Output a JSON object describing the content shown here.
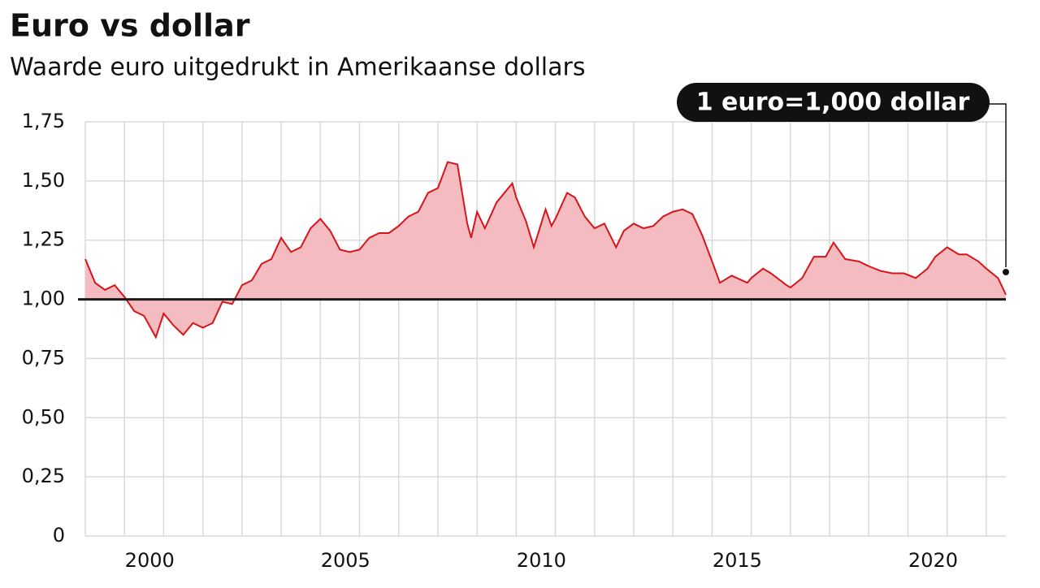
{
  "chart_data": {
    "type": "area",
    "title": "Euro vs dollar",
    "subtitle": "Waarde euro uitgedrukt in Amerikaanse dollars",
    "annotation": "1 euro=1,000 dollar",
    "x": [
      1999.0,
      1999.25,
      1999.5,
      1999.75,
      2000.0,
      2000.25,
      2000.5,
      2000.8,
      2001.0,
      2001.25,
      2001.5,
      2001.75,
      2002.0,
      2002.25,
      2002.5,
      2002.75,
      2003.0,
      2003.25,
      2003.5,
      2003.75,
      2004.0,
      2004.25,
      2004.5,
      2004.75,
      2005.0,
      2005.25,
      2005.5,
      2005.75,
      2006.0,
      2006.25,
      2006.5,
      2006.75,
      2007.0,
      2007.25,
      2007.5,
      2007.75,
      2008.0,
      2008.25,
      2008.5,
      2008.75,
      2008.85,
      2009.0,
      2009.2,
      2009.5,
      2009.9,
      2010.0,
      2010.25,
      2010.45,
      2010.75,
      2010.9,
      2011.0,
      2011.3,
      2011.5,
      2011.75,
      2012.0,
      2012.25,
      2012.55,
      2012.75,
      2013.0,
      2013.25,
      2013.5,
      2013.75,
      2014.0,
      2014.25,
      2014.5,
      2014.75,
      2015.0,
      2015.2,
      2015.5,
      2015.9,
      2016.0,
      2016.3,
      2016.5,
      2016.9,
      2017.0,
      2017.3,
      2017.6,
      2017.9,
      2018.1,
      2018.4,
      2018.75,
      2019.0,
      2019.3,
      2019.6,
      2019.9,
      2020.2,
      2020.5,
      2020.7,
      2021.0,
      2021.3,
      2021.5,
      2021.8,
      2022.0,
      2022.3,
      2022.5
    ],
    "values": [
      1.17,
      1.07,
      1.04,
      1.06,
      1.01,
      0.95,
      0.93,
      0.84,
      0.94,
      0.89,
      0.85,
      0.9,
      0.88,
      0.9,
      0.99,
      0.98,
      1.06,
      1.08,
      1.15,
      1.17,
      1.26,
      1.2,
      1.22,
      1.3,
      1.34,
      1.29,
      1.21,
      1.2,
      1.21,
      1.26,
      1.28,
      1.28,
      1.31,
      1.35,
      1.37,
      1.45,
      1.47,
      1.58,
      1.57,
      1.32,
      1.26,
      1.37,
      1.3,
      1.41,
      1.49,
      1.43,
      1.33,
      1.22,
      1.38,
      1.31,
      1.34,
      1.45,
      1.43,
      1.35,
      1.3,
      1.32,
      1.22,
      1.29,
      1.32,
      1.3,
      1.31,
      1.35,
      1.37,
      1.38,
      1.36,
      1.27,
      1.16,
      1.07,
      1.1,
      1.07,
      1.09,
      1.13,
      1.11,
      1.06,
      1.05,
      1.09,
      1.18,
      1.18,
      1.24,
      1.17,
      1.16,
      1.14,
      1.12,
      1.11,
      1.11,
      1.09,
      1.13,
      1.18,
      1.22,
      1.19,
      1.19,
      1.16,
      1.13,
      1.09,
      1.02
    ],
    "color": "#d7141a",
    "fill_color": "#f4bcc0",
    "baseline": 1,
    "xlim": [
      1999.0,
      2022.5
    ],
    "xticks": [
      2000,
      2005,
      2010,
      2015,
      2020
    ],
    "xgrid": [
      2000,
      2001,
      2002,
      2003,
      2004,
      2005,
      2006,
      2007,
      2008,
      2009,
      2010,
      2011,
      2012,
      2013,
      2014,
      2015,
      2016,
      2017,
      2018,
      2019,
      2020,
      2021,
      2022
    ],
    "ylim": [
      0,
      1.75
    ],
    "yticks": [
      0,
      {
        "value": 0.25,
        "label": "0,25"
      },
      {
        "value": 0.5,
        "label": "0,50"
      },
      {
        "value": 0.75,
        "label": "0,75"
      },
      {
        "value": 1,
        "label": "1,00"
      },
      {
        "value": 1.25,
        "label": "1,25"
      },
      {
        "value": 1.5,
        "label": "1,50"
      },
      {
        "value": 1.75,
        "label": "1,75"
      }
    ],
    "grid": true
  }
}
